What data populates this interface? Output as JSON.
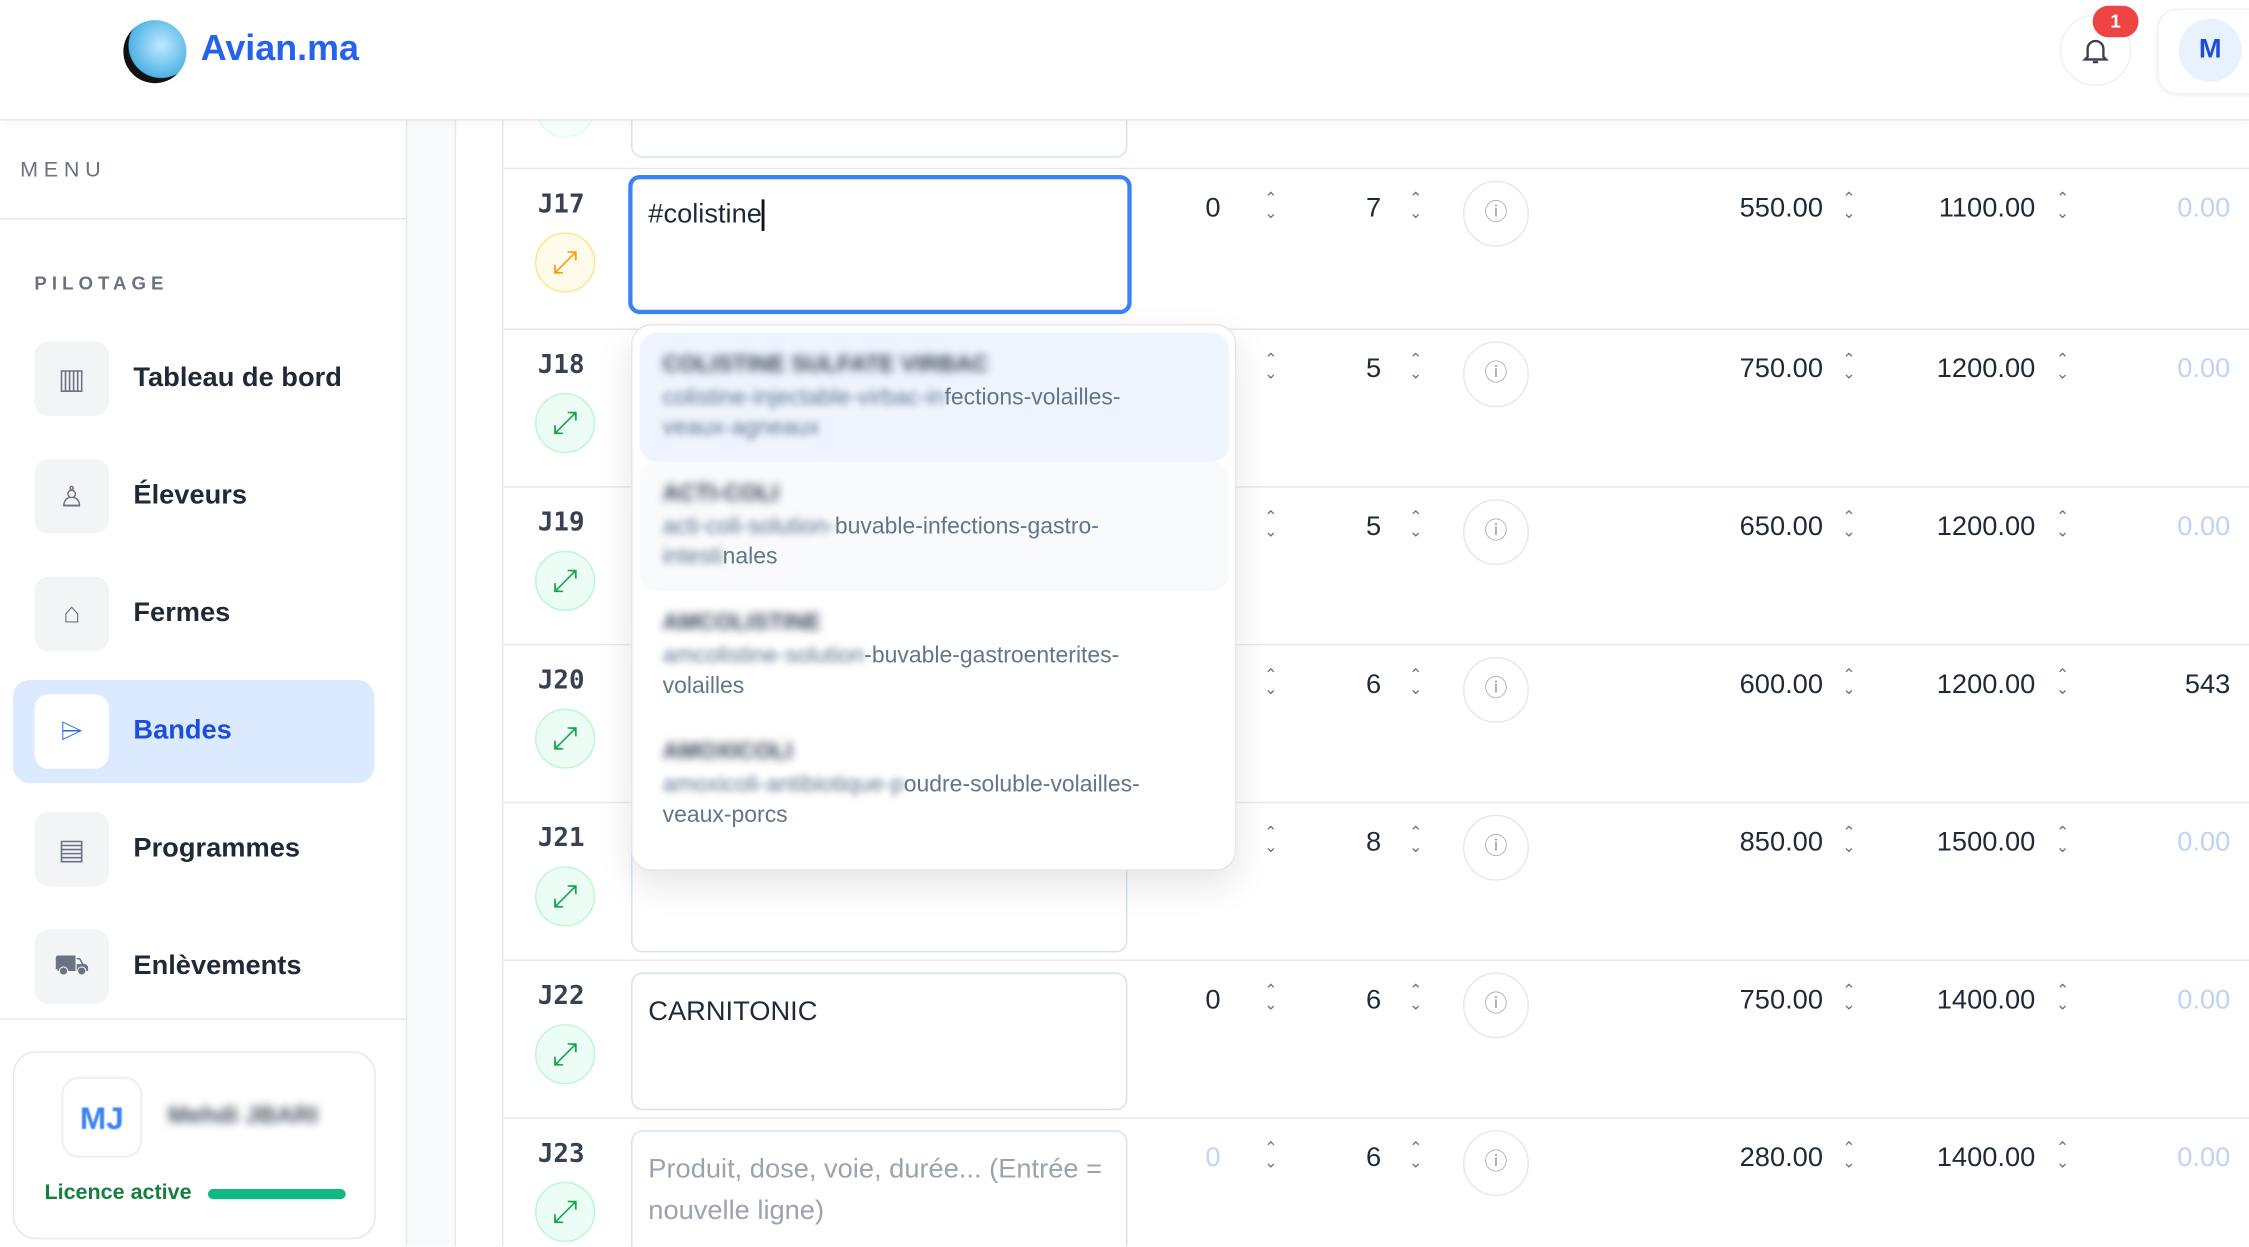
{
  "header": {
    "brand": "Avian.ma",
    "notifications_count": "1",
    "user_initial": "M"
  },
  "sidebar": {
    "menu_title": "MENU",
    "section": "PILOTAGE",
    "items": [
      {
        "label": "Tableau de bord",
        "icon": "dashboard-icon",
        "active": false
      },
      {
        "label": "Éleveurs",
        "icon": "user-icon",
        "active": false
      },
      {
        "label": "Fermes",
        "icon": "home-icon",
        "active": false
      },
      {
        "label": "Bandes",
        "icon": "tag-icon",
        "active": true
      },
      {
        "label": "Programmes",
        "icon": "document-icon",
        "active": false
      },
      {
        "label": "Enlèvements",
        "icon": "truck-icon",
        "active": false
      }
    ],
    "user": {
      "initials": "MJ",
      "name": "Mehdi JBARI",
      "licence": "Licence active",
      "licence_progress": 1.0
    }
  },
  "rows": [
    {
      "day": "J17",
      "product": "#colistine",
      "placeholder": "",
      "v1": "0",
      "v2": "7",
      "price": "550.00",
      "total": "1100.00",
      "last": "0.00",
      "status": "warning"
    },
    {
      "day": "J18",
      "product": "",
      "v1": "",
      "v2": "5",
      "price": "750.00",
      "total": "1200.00",
      "last": "0.00",
      "status": "ok"
    },
    {
      "day": "J19",
      "product": "",
      "v1": "",
      "v2": "5",
      "price": "650.00",
      "total": "1200.00",
      "last": "0.00",
      "status": "ok"
    },
    {
      "day": "J20",
      "product": "",
      "v1": "",
      "v2": "6",
      "price": "600.00",
      "total": "1200.00",
      "last": "543",
      "status": "ok"
    },
    {
      "day": "J21",
      "product": "",
      "v1": "",
      "v2": "8",
      "price": "850.00",
      "total": "1500.00",
      "last": "0.00",
      "status": "ok"
    },
    {
      "day": "J22",
      "product": "CARNITONIC",
      "v1": "0",
      "v2": "6",
      "price": "750.00",
      "total": "1400.00",
      "last": "0.00",
      "status": "ok"
    },
    {
      "day": "J23",
      "product": "",
      "placeholder": "Produit, dose, voie, durée... (Entrée = nouvelle ligne)",
      "v1": "0",
      "v2": "6",
      "price": "280.00",
      "total": "1400.00",
      "last": "0.00",
      "status": "ok"
    }
  ],
  "suggestions": [
    {
      "name": "COLISTINE SULFATE VIRBAC",
      "desc_hidden": "colistine-injectable-virbac-in",
      "desc_visible": "fections-volailles-",
      "desc_line2_hidden": "veaux-agneaux"
    },
    {
      "name": "ACTI-COLI",
      "desc_hidden": "acti-coli-solution-",
      "desc_visible": "buvable-infections-gastro-",
      "desc_line2_hidden": "intesti",
      "desc_line2_visible": "nales"
    },
    {
      "name": "AMCOLISTINE",
      "desc_hidden": "amcolistine-solution",
      "desc_visible": "-buvable-gastroenterites-",
      "desc_line2_visible": "volailles"
    },
    {
      "name": "AMOXICOLI",
      "desc_hidden": "amoxicoli-antibiotique-p",
      "desc_visible": "oudre-soluble-volailles-",
      "desc_line2_visible": "veaux-porcs"
    }
  ],
  "colors": {
    "accent": "#2563eb",
    "active_bg": "#dbeafe",
    "danger": "#ef4444",
    "success": "#10b981"
  }
}
